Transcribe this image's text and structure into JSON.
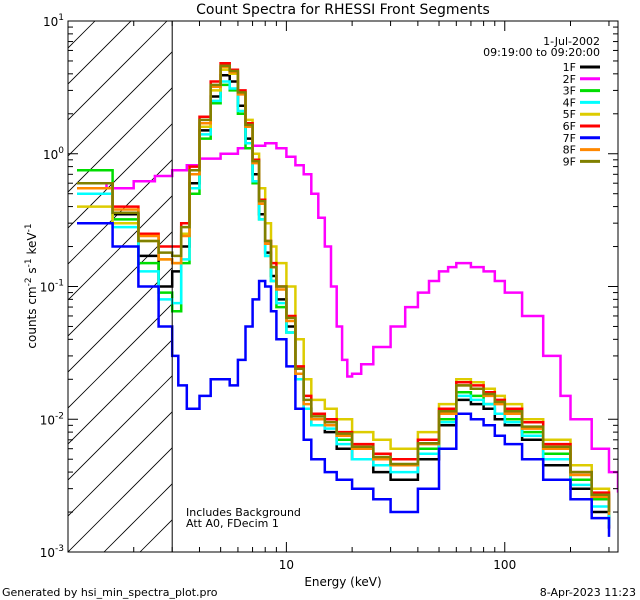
{
  "chart_data": {
    "type": "line",
    "title": "Count Spectra for RHESSI Front Segments",
    "xlabel": "Energy (keV)",
    "ylabel_parts": {
      "pre": "counts cm",
      "sup1": "-2",
      "mid": " s",
      "sup2": "-1",
      "post": " keV",
      "sup3": "-1"
    },
    "xscale": "log",
    "yscale": "log",
    "xlim": [
      1,
      330
    ],
    "ylim": [
      0.001,
      10
    ],
    "x_ticks": [
      {
        "value": 10,
        "label": "10"
      },
      {
        "value": 100,
        "label": "100"
      }
    ],
    "y_ticks": [
      {
        "value": 0.001,
        "base": "10",
        "exp": "-3"
      },
      {
        "value": 0.01,
        "base": "10",
        "exp": "-2"
      },
      {
        "value": 0.1,
        "base": "10",
        "exp": "-1"
      },
      {
        "value": 1,
        "base": "10",
        "exp": "0"
      },
      {
        "value": 10,
        "base": "10",
        "exp": "1"
      }
    ],
    "legend_position": "top-right",
    "legend_header": [
      "1-Jul-2002",
      "09:19:00 to 09:20:00"
    ],
    "hatched_region_upper_keV": 3,
    "annotations": [
      "Includes Background",
      "Att A0, FDecim 1"
    ],
    "series": [
      {
        "name": "1F",
        "color": "#000000",
        "x": [
          1.1,
          1.6,
          2.1,
          2.6,
          3.0,
          3.3,
          3.6,
          4.0,
          4.5,
          5.0,
          5.5,
          6.0,
          6.5,
          7.0,
          7.5,
          8.0,
          8.5,
          9.0,
          10,
          11,
          12,
          13,
          15,
          17,
          20,
          25,
          30,
          40,
          50,
          60,
          70,
          80,
          90,
          100,
          120,
          150,
          200,
          250,
          300
        ],
        "y": [
          0.6,
          0.35,
          0.17,
          0.1,
          0.13,
          0.2,
          0.6,
          1.5,
          2.7,
          3.9,
          3.5,
          2.3,
          1.3,
          0.7,
          0.35,
          0.18,
          0.12,
          0.08,
          0.05,
          0.02,
          0.012,
          0.009,
          0.008,
          0.006,
          0.005,
          0.004,
          0.0035,
          0.005,
          0.009,
          0.014,
          0.013,
          0.012,
          0.01,
          0.009,
          0.007,
          0.0045,
          0.003,
          0.002,
          0.0015
        ]
      },
      {
        "name": "2F",
        "color": "#ff00ff",
        "x": [
          1.1,
          1.5,
          2.0,
          2.5,
          3.0,
          3.5,
          4.0,
          5.0,
          6.0,
          7.0,
          8.0,
          9.0,
          10,
          11,
          12,
          13,
          14,
          15,
          16,
          17,
          18,
          19,
          20,
          22,
          25,
          30,
          35,
          40,
          45,
          50,
          55,
          60,
          65,
          70,
          80,
          90,
          100,
          120,
          150,
          180,
          200,
          250,
          300,
          330
        ],
        "y": [
          0.6,
          0.55,
          0.62,
          0.68,
          0.75,
          0.82,
          0.92,
          1.0,
          1.1,
          1.15,
          1.2,
          1.1,
          0.95,
          0.82,
          0.7,
          0.5,
          0.33,
          0.2,
          0.1,
          0.05,
          0.028,
          0.021,
          0.022,
          0.026,
          0.035,
          0.05,
          0.07,
          0.09,
          0.11,
          0.13,
          0.14,
          0.15,
          0.15,
          0.14,
          0.13,
          0.11,
          0.09,
          0.06,
          0.03,
          0.015,
          0.01,
          0.006,
          0.004,
          0.0028
        ]
      },
      {
        "name": "3F",
        "color": "#00dd00",
        "x": [
          1.1,
          1.6,
          2.1,
          2.6,
          3.0,
          3.3,
          3.6,
          4.0,
          4.5,
          5.0,
          5.5,
          6.0,
          6.5,
          7.0,
          7.5,
          8.0,
          8.5,
          9.0,
          10,
          11,
          12,
          13,
          15,
          17,
          20,
          25,
          30,
          40,
          50,
          60,
          70,
          80,
          90,
          100,
          120,
          150,
          200,
          250,
          300
        ],
        "y": [
          0.75,
          0.32,
          0.15,
          0.09,
          0.065,
          0.15,
          0.5,
          1.3,
          2.4,
          3.3,
          3.0,
          2.0,
          1.1,
          0.6,
          0.32,
          0.17,
          0.11,
          0.07,
          0.045,
          0.02,
          0.012,
          0.01,
          0.009,
          0.007,
          0.006,
          0.005,
          0.0045,
          0.006,
          0.01,
          0.016,
          0.015,
          0.013,
          0.011,
          0.01,
          0.008,
          0.0055,
          0.0035,
          0.0025,
          0.0018
        ]
      },
      {
        "name": "4F",
        "color": "#00ffff",
        "x": [
          1.1,
          1.6,
          2.1,
          2.6,
          3.0,
          3.3,
          3.6,
          4.0,
          4.5,
          5.0,
          5.5,
          6.0,
          6.5,
          7.0,
          7.5,
          8.0,
          8.5,
          9.0,
          10,
          11,
          12,
          13,
          15,
          17,
          20,
          25,
          30,
          40,
          50,
          60,
          70,
          80,
          90,
          100,
          120,
          150,
          200,
          250,
          300
        ],
        "y": [
          0.5,
          0.28,
          0.13,
          0.08,
          0.075,
          0.16,
          0.55,
          1.4,
          2.5,
          3.5,
          3.1,
          2.1,
          1.2,
          0.62,
          0.32,
          0.17,
          0.11,
          0.075,
          0.045,
          0.02,
          0.012,
          0.009,
          0.0085,
          0.0065,
          0.005,
          0.0045,
          0.004,
          0.0055,
          0.0095,
          0.015,
          0.014,
          0.013,
          0.011,
          0.0095,
          0.0075,
          0.005,
          0.0032,
          0.0022,
          0.0016
        ]
      },
      {
        "name": "5F",
        "color": "#ddcc00",
        "x": [
          1.1,
          1.6,
          2.1,
          2.6,
          3.0,
          3.3,
          3.6,
          4.0,
          4.5,
          5.0,
          5.5,
          6.0,
          6.5,
          7.0,
          7.5,
          8.0,
          8.5,
          9.0,
          10,
          11,
          12,
          13,
          15,
          17,
          20,
          25,
          30,
          40,
          50,
          60,
          70,
          80,
          90,
          100,
          120,
          150,
          200,
          250,
          300
        ],
        "y": [
          0.4,
          0.3,
          0.22,
          0.16,
          0.15,
          0.25,
          0.7,
          1.6,
          3.0,
          4.3,
          4.0,
          2.9,
          1.8,
          1.0,
          0.55,
          0.3,
          0.2,
          0.15,
          0.1,
          0.04,
          0.02,
          0.014,
          0.012,
          0.01,
          0.008,
          0.007,
          0.006,
          0.008,
          0.013,
          0.02,
          0.019,
          0.017,
          0.015,
          0.013,
          0.01,
          0.007,
          0.0045,
          0.003,
          0.0022
        ]
      },
      {
        "name": "6F",
        "color": "#ff0000",
        "x": [
          1.1,
          1.6,
          2.1,
          2.6,
          3.0,
          3.3,
          3.6,
          4.0,
          4.5,
          5.0,
          5.5,
          6.0,
          6.5,
          7.0,
          7.5,
          8.0,
          8.5,
          9.0,
          10,
          11,
          12,
          13,
          15,
          17,
          20,
          25,
          30,
          40,
          50,
          60,
          70,
          80,
          90,
          100,
          120,
          150,
          200,
          250,
          300
        ],
        "y": [
          0.6,
          0.4,
          0.25,
          0.2,
          0.2,
          0.3,
          0.8,
          1.9,
          3.5,
          4.8,
          4.3,
          3.0,
          1.7,
          0.9,
          0.45,
          0.22,
          0.15,
          0.1,
          0.06,
          0.025,
          0.015,
          0.011,
          0.01,
          0.008,
          0.0065,
          0.0055,
          0.005,
          0.007,
          0.012,
          0.019,
          0.018,
          0.016,
          0.014,
          0.012,
          0.0095,
          0.0065,
          0.004,
          0.0028,
          0.002
        ]
      },
      {
        "name": "7F",
        "color": "#0000ff",
        "x": [
          1.1,
          1.6,
          2.1,
          2.6,
          3.0,
          3.2,
          3.5,
          4.0,
          4.5,
          5.0,
          5.5,
          6.0,
          6.5,
          7.0,
          7.5,
          8.0,
          8.5,
          9.0,
          10,
          11,
          12,
          13,
          15,
          17,
          20,
          25,
          30,
          40,
          50,
          60,
          70,
          80,
          90,
          100,
          120,
          150,
          200,
          250,
          300
        ],
        "y": [
          0.3,
          0.2,
          0.1,
          0.05,
          0.03,
          0.018,
          0.012,
          0.015,
          0.02,
          0.02,
          0.018,
          0.028,
          0.05,
          0.08,
          0.11,
          0.1,
          0.065,
          0.04,
          0.025,
          0.012,
          0.007,
          0.005,
          0.004,
          0.0035,
          0.003,
          0.0025,
          0.002,
          0.003,
          0.006,
          0.011,
          0.01,
          0.009,
          0.0075,
          0.0065,
          0.005,
          0.0035,
          0.0025,
          0.0018,
          0.0013
        ]
      },
      {
        "name": "8F",
        "color": "#ff8800",
        "x": [
          1.1,
          1.6,
          2.1,
          2.6,
          3.0,
          3.3,
          3.6,
          4.0,
          4.5,
          5.0,
          5.5,
          6.0,
          6.5,
          7.0,
          7.5,
          8.0,
          8.5,
          9.0,
          10,
          11,
          12,
          13,
          15,
          17,
          20,
          25,
          30,
          40,
          50,
          60,
          70,
          80,
          90,
          100,
          120,
          150,
          200,
          250,
          300
        ],
        "y": [
          0.55,
          0.38,
          0.24,
          0.16,
          0.15,
          0.24,
          0.7,
          1.7,
          3.2,
          4.5,
          4.1,
          2.8,
          1.6,
          0.85,
          0.42,
          0.21,
          0.14,
          0.095,
          0.055,
          0.022,
          0.013,
          0.01,
          0.009,
          0.0075,
          0.006,
          0.005,
          0.0045,
          0.0065,
          0.011,
          0.018,
          0.017,
          0.015,
          0.013,
          0.011,
          0.0085,
          0.006,
          0.0038,
          0.0026,
          0.0019
        ]
      },
      {
        "name": "9F",
        "color": "#808000",
        "x": [
          1.1,
          1.6,
          2.1,
          2.6,
          3.0,
          3.3,
          3.6,
          4.0,
          4.5,
          5.0,
          5.5,
          6.0,
          6.5,
          7.0,
          7.5,
          8.0,
          8.5,
          9.0,
          10,
          11,
          12,
          13,
          15,
          17,
          20,
          25,
          30,
          40,
          50,
          60,
          70,
          80,
          90,
          100,
          120,
          150,
          200,
          250,
          300
        ],
        "y": [
          0.6,
          0.36,
          0.22,
          0.18,
          0.17,
          0.28,
          0.75,
          1.8,
          3.3,
          4.6,
          4.2,
          2.9,
          1.65,
          0.88,
          0.44,
          0.22,
          0.14,
          0.1,
          0.058,
          0.024,
          0.014,
          0.0105,
          0.0095,
          0.0078,
          0.0062,
          0.0052,
          0.0046,
          0.0066,
          0.0115,
          0.018,
          0.017,
          0.0155,
          0.0135,
          0.0115,
          0.0088,
          0.0062,
          0.004,
          0.0027,
          0.002
        ]
      }
    ]
  },
  "footer": {
    "generated_by": "Generated by hsi_min_spectra_plot.pro",
    "timestamp": "8-Apr-2023 11:23"
  }
}
